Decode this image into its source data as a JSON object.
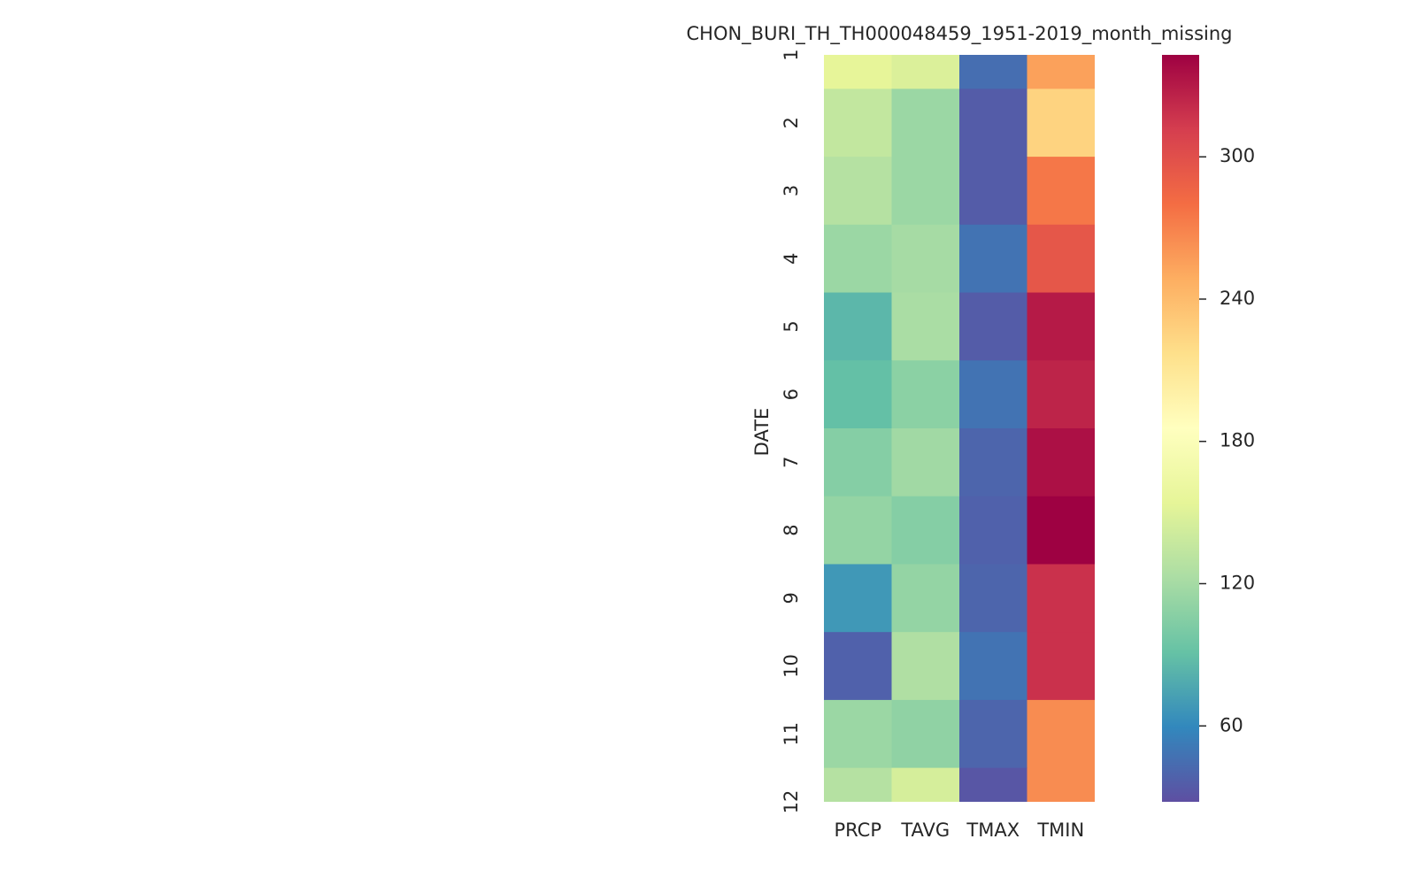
{
  "chart_data": {
    "type": "heatmap",
    "title": "CHON_BURI_TH_TH000048459_1951-2019_month_missing",
    "ylabel": "DATE",
    "columns": [
      "PRCP",
      "TAVG",
      "TMAX",
      "TMIN"
    ],
    "rows": [
      1,
      2,
      3,
      4,
      5,
      6,
      7,
      8,
      9,
      10,
      11,
      12
    ],
    "values": [
      [
        155,
        148,
        45,
        255
      ],
      [
        135,
        115,
        35,
        225
      ],
      [
        128,
        115,
        35,
        275
      ],
      [
        115,
        120,
        48,
        295
      ],
      [
        85,
        122,
        35,
        330
      ],
      [
        90,
        108,
        48,
        325
      ],
      [
        105,
        118,
        40,
        335
      ],
      [
        112,
        105,
        38,
        343
      ],
      [
        68,
        112,
        40,
        318
      ],
      [
        38,
        125,
        48,
        318
      ],
      [
        115,
        110,
        40,
        265
      ],
      [
        128,
        145,
        32,
        265
      ]
    ],
    "colormap": [
      "#5e4fa2",
      "#3288bd",
      "#66c2a5",
      "#abdda4",
      "#e6f598",
      "#ffffbf",
      "#fee08b",
      "#fdae61",
      "#f46d43",
      "#d53e4f",
      "#9e0142"
    ],
    "clim": [
      28,
      343
    ],
    "cticks": [
      60,
      120,
      180,
      240,
      300
    ]
  }
}
